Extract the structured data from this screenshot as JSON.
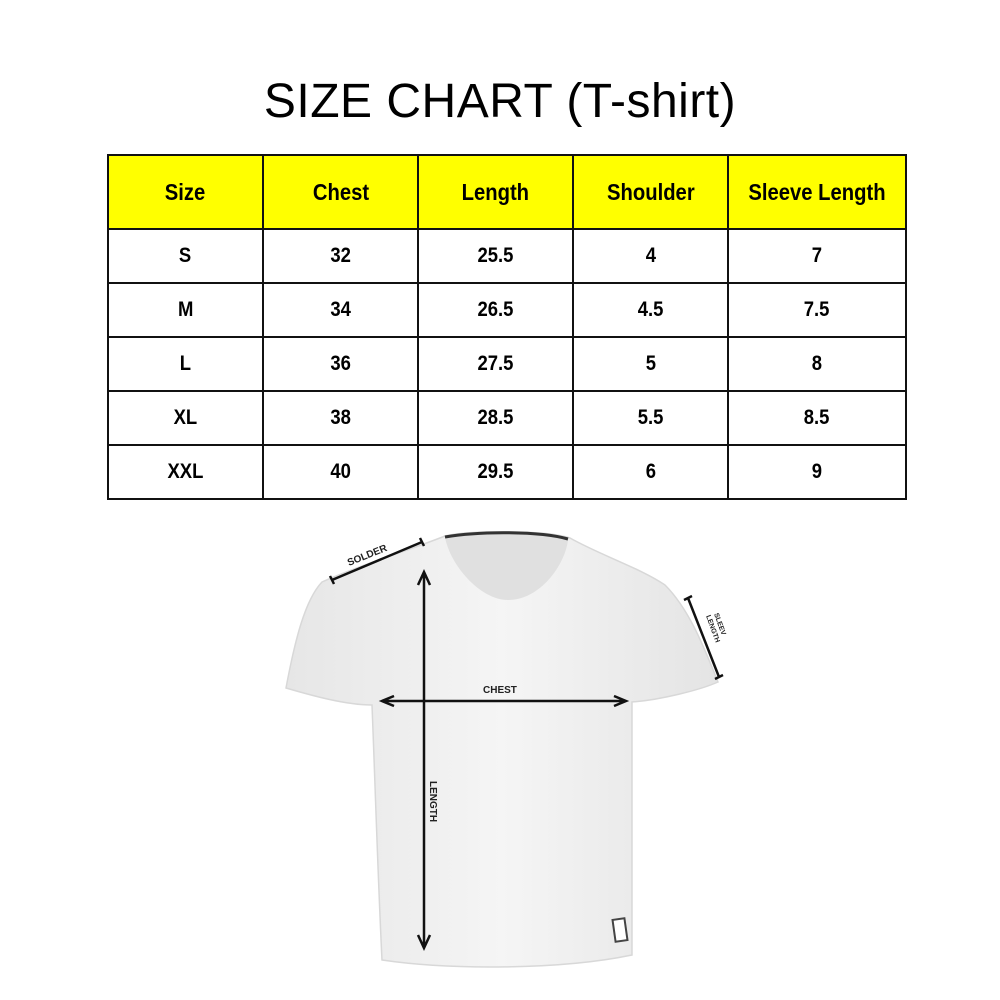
{
  "title": "SIZE CHART (T-shirt)",
  "table": {
    "headers": [
      "Size",
      "Chest",
      "Length",
      "Shoulder",
      "Sleeve Length"
    ],
    "rows": [
      [
        "S",
        "32",
        "25.5",
        "4",
        "7"
      ],
      [
        "M",
        "34",
        "26.5",
        "4.5",
        "7.5"
      ],
      [
        "L",
        "36",
        "27.5",
        "5",
        "8"
      ],
      [
        "XL",
        "38",
        "28.5",
        "5.5",
        "8.5"
      ],
      [
        "XXL",
        "40",
        "29.5",
        "6",
        "9"
      ]
    ]
  },
  "diagram": {
    "shoulder_label": "SOLDER",
    "chest_label": "CHEST",
    "length_label": "LENGTH",
    "sleeve_label_line1": "SLEEV",
    "sleeve_label_line2": "LENGTH"
  },
  "colors": {
    "header_bg": "#ffff00",
    "shirt": "#f1f1f1"
  }
}
